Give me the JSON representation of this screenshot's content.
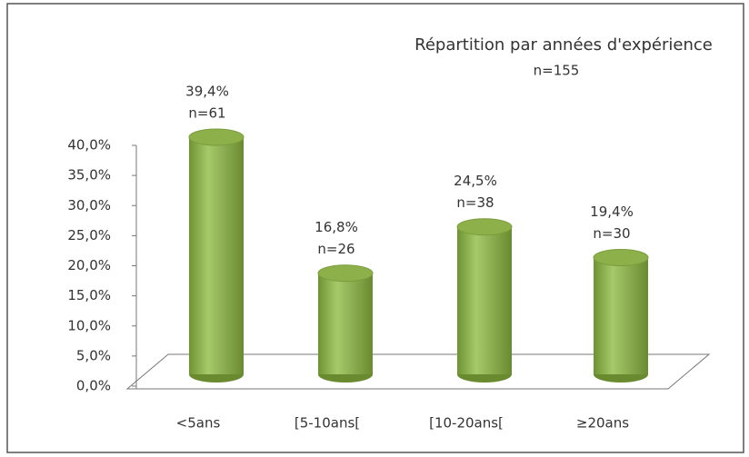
{
  "chart_data": {
    "type": "bar3d",
    "title": "Répartition par années d'expérience",
    "subtitle": "n=155",
    "categories": [
      "<5ans",
      "[5-10ans[",
      "[10-20ans[",
      "≥20ans"
    ],
    "values": [
      39.4,
      16.8,
      24.5,
      19.4
    ],
    "value_labels": [
      "39,4%",
      "16,8%",
      "24,5%",
      "19,4%"
    ],
    "n_labels": [
      "n=61",
      "n=26",
      "n=38",
      "n=30"
    ],
    "color": "#8db04a",
    "ylim": [
      0,
      40
    ],
    "yticks": [
      {
        "value": 0,
        "label": "0,0%"
      },
      {
        "value": 5,
        "label": "5,0%"
      },
      {
        "value": 10,
        "label": "10,0%"
      },
      {
        "value": 15,
        "label": "15,0%"
      },
      {
        "value": 20,
        "label": "20,0%"
      },
      {
        "value": 25,
        "label": "25,0%"
      },
      {
        "value": 30,
        "label": "30,0%"
      },
      {
        "value": 35,
        "label": "35,0%"
      },
      {
        "value": 40,
        "label": "40,0%"
      }
    ],
    "grid": false
  }
}
